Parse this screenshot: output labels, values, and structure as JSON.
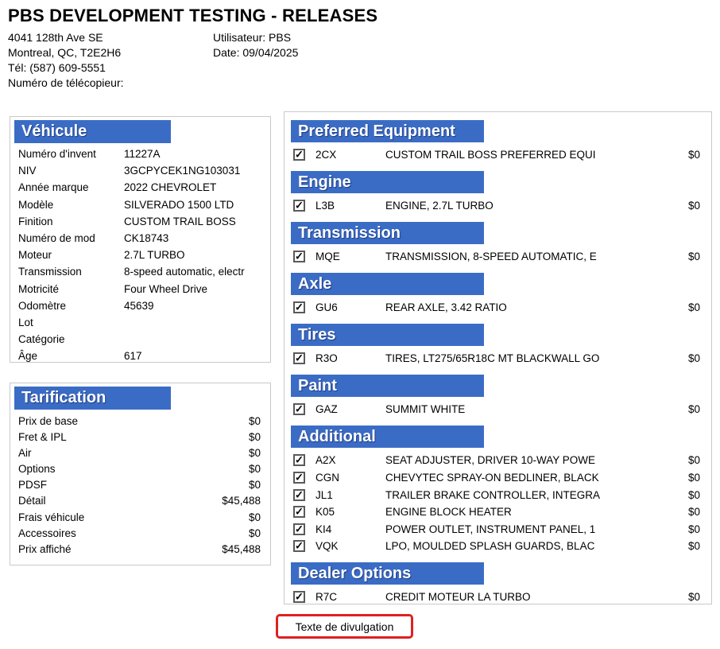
{
  "colors": {
    "accent": "#3B6CC5",
    "panel_border": "#C9C9C9",
    "button_border": "#E02020"
  },
  "header": {
    "title": "PBS DEVELOPMENT TESTING - RELEASES",
    "address_lines": [
      "4041 128th Ave SE",
      "Montreal, QC, T2E2H6",
      "Tél: (587) 609-5551",
      "Numéro de télécopieur:"
    ],
    "user_line": "Utilisateur: PBS",
    "date_line": "Date: 09/04/2025"
  },
  "vehicle": {
    "title": "Véhicule",
    "fields": [
      {
        "label": "Numéro d'invent",
        "value": "11227A"
      },
      {
        "label": "NIV",
        "value": "3GCPYCEK1NG103031"
      },
      {
        "label": "Année marque",
        "value": "2022 CHEVROLET"
      },
      {
        "label": "Modèle",
        "value": "SILVERADO 1500 LTD"
      },
      {
        "label": "Finition",
        "value": "CUSTOM TRAIL BOSS"
      },
      {
        "label": "Numéro de mod",
        "value": "CK18743"
      },
      {
        "label": "Moteur",
        "value": "2.7L TURBO"
      },
      {
        "label": "Transmission",
        "value": "8-speed automatic, electr"
      },
      {
        "label": "Motricité",
        "value": "Four Wheel Drive"
      },
      {
        "label": "Odomètre",
        "value": "45639"
      },
      {
        "label": "Lot",
        "value": ""
      },
      {
        "label": "Catégorie",
        "value": ""
      },
      {
        "label": "Âge",
        "value": "617"
      }
    ]
  },
  "pricing": {
    "title": "Tarification",
    "rows": [
      {
        "label": "Prix de base",
        "value": "$0"
      },
      {
        "label": "Fret & IPL",
        "value": "$0"
      },
      {
        "label": "Air",
        "value": "$0"
      },
      {
        "label": "Options",
        "value": "$0"
      },
      {
        "label": "PDSF",
        "value": "$0"
      },
      {
        "label": "Détail",
        "value": "$45,488"
      },
      {
        "label": "Frais véhicule",
        "value": "$0"
      },
      {
        "label": "Accessoires",
        "value": "$0"
      },
      {
        "label": "Prix affiché",
        "value": "$45,488"
      }
    ]
  },
  "options": {
    "sections": [
      {
        "title": "Preferred Equipment",
        "items": [
          {
            "checked": true,
            "code": "2CX",
            "desc": "CUSTOM TRAIL BOSS PREFERRED EQUI",
            "price": "$0"
          }
        ]
      },
      {
        "title": "Engine",
        "items": [
          {
            "checked": true,
            "code": "L3B",
            "desc": "ENGINE, 2.7L TURBO",
            "price": "$0"
          }
        ]
      },
      {
        "title": "Transmission",
        "items": [
          {
            "checked": true,
            "code": "MQE",
            "desc": "TRANSMISSION, 8-SPEED AUTOMATIC, E",
            "price": "$0"
          }
        ]
      },
      {
        "title": "Axle",
        "items": [
          {
            "checked": true,
            "code": "GU6",
            "desc": "REAR AXLE, 3.42 RATIO",
            "price": "$0"
          }
        ]
      },
      {
        "title": "Tires",
        "items": [
          {
            "checked": true,
            "code": "R3O",
            "desc": "TIRES, LT275/65R18C MT BLACKWALL GO",
            "price": "$0"
          }
        ]
      },
      {
        "title": "Paint",
        "items": [
          {
            "checked": true,
            "code": "GAZ",
            "desc": "SUMMIT WHITE",
            "price": "$0"
          }
        ]
      },
      {
        "title": "Additional",
        "items": [
          {
            "checked": true,
            "code": "A2X",
            "desc": "SEAT ADJUSTER, DRIVER 10-WAY POWE",
            "price": "$0"
          },
          {
            "checked": true,
            "code": "CGN",
            "desc": "CHEVYTEC SPRAY-ON BEDLINER, BLACK",
            "price": "$0"
          },
          {
            "checked": true,
            "code": "JL1",
            "desc": "TRAILER BRAKE CONTROLLER, INTEGRA",
            "price": "$0"
          },
          {
            "checked": true,
            "code": "K05",
            "desc": "ENGINE BLOCK HEATER",
            "price": "$0"
          },
          {
            "checked": true,
            "code": "KI4",
            "desc": "POWER OUTLET, INSTRUMENT PANEL, 1",
            "price": "$0"
          },
          {
            "checked": true,
            "code": "VQK",
            "desc": "LPO, MOULDED SPLASH GUARDS, BLAC",
            "price": "$0"
          }
        ]
      },
      {
        "title": "Dealer Options",
        "items": [
          {
            "checked": true,
            "code": "R7C",
            "desc": "CREDIT MOTEUR LA TURBO",
            "price": "$0"
          }
        ]
      }
    ]
  },
  "footer": {
    "disclosure_button": "Texte de divulgation"
  }
}
